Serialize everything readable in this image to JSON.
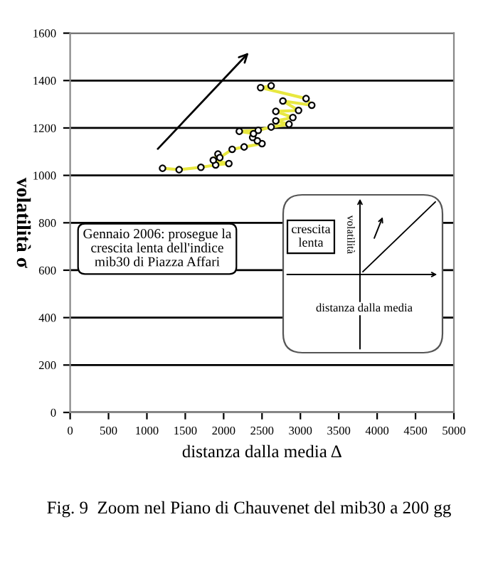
{
  "chart_data": {
    "type": "line",
    "xlabel": "distanza dalla media Δ",
    "ylabel": "volatilità σ",
    "x": [
      1204,
      1420,
      1704,
      1896,
      2068,
      1865,
      1926,
      1950,
      2111,
      2267,
      2500,
      2439,
      2378,
      2389,
      2204,
      2451,
      2619,
      2852,
      2680,
      2902,
      2680,
      2976,
      2772,
      3148,
      3074,
      2482,
      2619
    ],
    "series": [
      {
        "color": "#e8e840",
        "values": [
          1030,
          1024,
          1034,
          1044,
          1050,
          1064,
          1090,
          1075,
          1110,
          1120,
          1134,
          1146,
          1160,
          1176,
          1186,
          1190,
          1204,
          1216,
          1230,
          1244,
          1270,
          1274,
          1314,
          1296,
          1324,
          1370,
          1378
        ]
      }
    ],
    "marker": "circle",
    "line_style": "solid",
    "grid": "y",
    "xlim": [
      0,
      5000
    ],
    "xticks": [
      0,
      500,
      1000,
      1500,
      2000,
      2500,
      3000,
      3500,
      4000,
      4500,
      5000
    ],
    "ylim": [
      0,
      1600
    ],
    "yticks": [
      0,
      200,
      400,
      600,
      800,
      1000,
      1200,
      1400,
      1600
    ],
    "annotations": [
      "Fig. 9  Zoom nel Piano di Chauvenet del mib30 a 200 gg",
      "Gennaio 2006: prosegue la\ncrescita lenta dell'indice\nmib30 di Piazza Affari",
      "crescita\nlenta",
      "volatilità",
      "distanza dalla media"
    ]
  }
}
